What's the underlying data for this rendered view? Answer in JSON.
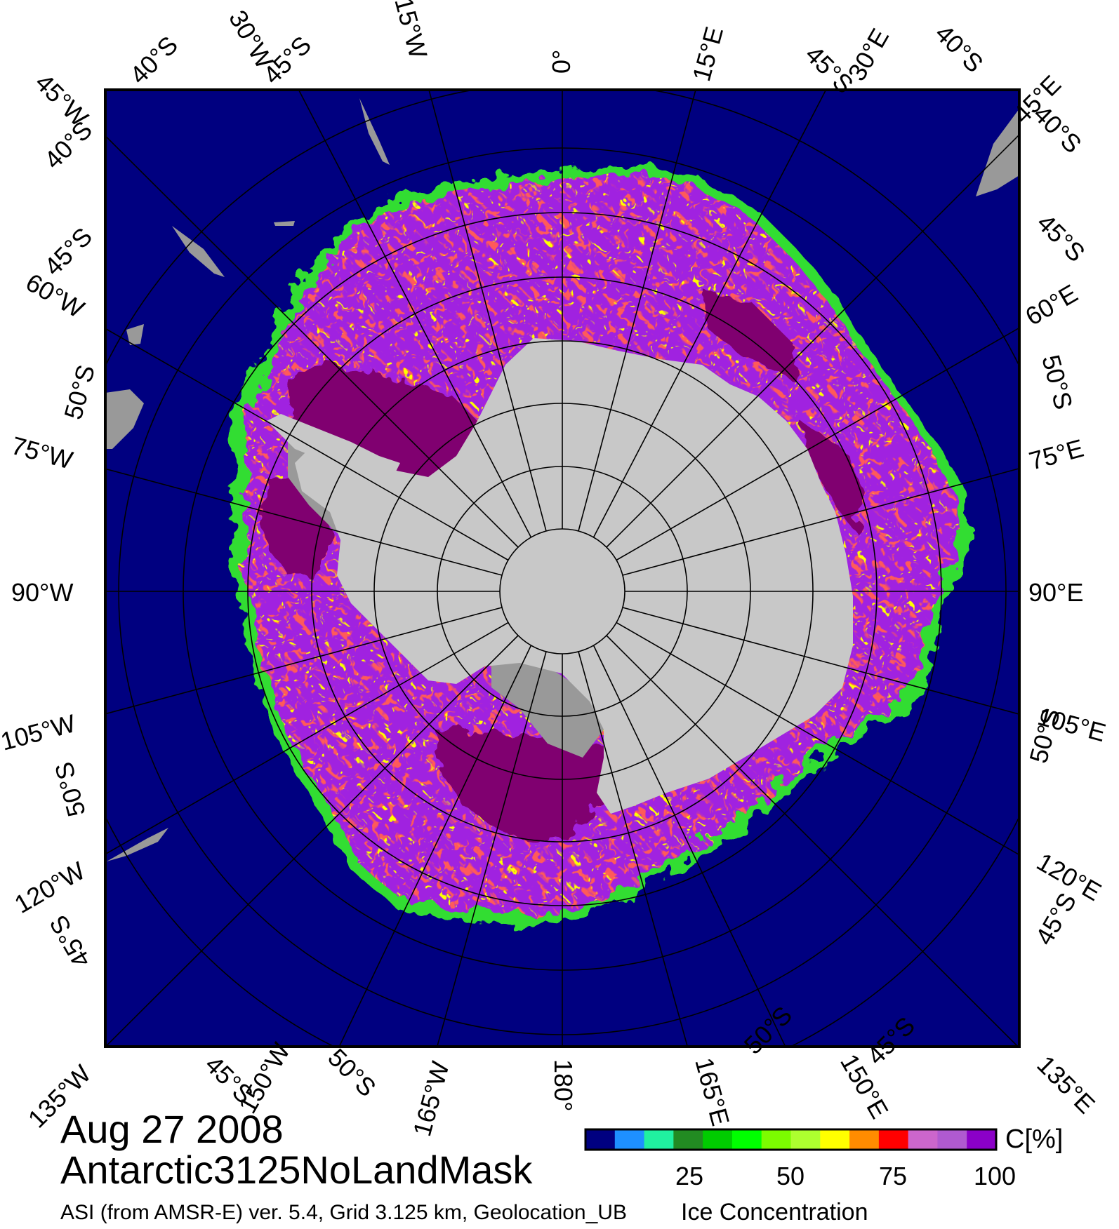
{
  "map": {
    "projection": "south-polar-stereographic",
    "lon_labels_left": [
      "45°W",
      "30°W",
      "15°W",
      "60°W",
      "75°W",
      "90°W",
      "105°W",
      "120°W",
      "135°W"
    ],
    "lon_labels_top": [
      "0°",
      "15°E",
      "30°E",
      "45°E"
    ],
    "lon_labels_right": [
      "60°E",
      "75°E",
      "90°E",
      "105°E",
      "120°E",
      "135°E"
    ],
    "lon_labels_bottom": [
      "150°W",
      "165°W",
      "180°",
      "165°E",
      "150°E"
    ],
    "lat_labels": [
      "40°S",
      "45°S",
      "50°S"
    ],
    "ocean_color": "#000080",
    "land_color": "#c8c8c8",
    "shelf_color": "#969696",
    "ice_colors": [
      "#800080",
      "#a020f0",
      "#ff0000",
      "#ffff00",
      "#00ff00"
    ]
  },
  "footer": {
    "date": "Aug 27 2008",
    "product": "Antarctic3125NoLandMask",
    "source": "ASI (from AMSR-E) ver. 5.4,  Grid 3.125 km, Geolocation_UB"
  },
  "colorbar": {
    "title": "Ice Concentration",
    "unit": "C[%]",
    "ticks": [
      "25",
      "50",
      "75",
      "100"
    ],
    "tick_values": [
      25,
      50,
      75,
      100
    ],
    "range": [
      0,
      100
    ],
    "colors": [
      "#000080",
      "#1e90ff",
      "#20f0a0",
      "#228b22",
      "#00cc00",
      "#00ff00",
      "#7cfc00",
      "#adff2f",
      "#ffff00",
      "#ff8c00",
      "#ff0000",
      "#cc66cc",
      "#b05ad0",
      "#8b00c8"
    ]
  }
}
